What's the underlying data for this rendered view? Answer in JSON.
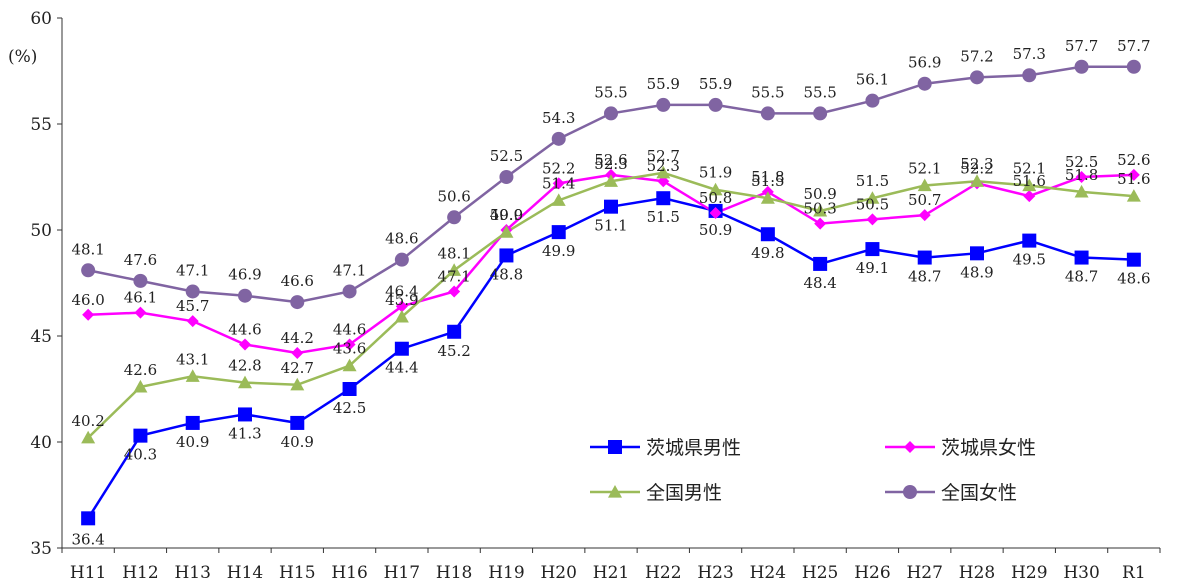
{
  "chart_data": {
    "type": "line",
    "unit_label": "(%)",
    "categories": [
      "H11",
      "H12",
      "H13",
      "H14",
      "H15",
      "H16",
      "H17",
      "H18",
      "H19",
      "H20",
      "H21",
      "H22",
      "H23",
      "H24",
      "H25",
      "H26",
      "H27",
      "H28",
      "H29",
      "H30",
      "R1"
    ],
    "ylim": [
      35,
      60
    ],
    "yticks": [
      35,
      40,
      45,
      50,
      55,
      60
    ],
    "grid": false,
    "legend_position": "bottom-right",
    "series": [
      {
        "name": "茨城県男性",
        "color": "#0000ff",
        "marker": "square",
        "values": [
          36.4,
          40.3,
          40.9,
          41.3,
          40.9,
          42.5,
          44.4,
          45.2,
          48.8,
          49.9,
          51.1,
          51.5,
          50.9,
          49.8,
          48.4,
          49.1,
          48.7,
          48.9,
          49.5,
          48.7,
          48.6
        ],
        "labels": [
          "36.4",
          "40.3",
          "40.9",
          "41.3",
          "40.9",
          "42.5",
          "44.4",
          "45.2",
          "48.8",
          "49.9",
          "51.1",
          "51.5",
          "50.9",
          "49.8",
          "48.4",
          "49.1",
          "48.7",
          "48.9",
          "49.5",
          "48.7",
          "48.6"
        ]
      },
      {
        "name": "茨城県女性",
        "color": "#ff00ff",
        "marker": "diamond",
        "values": [
          46.0,
          46.1,
          45.7,
          44.6,
          44.2,
          44.6,
          46.4,
          47.1,
          50.0,
          52.2,
          52.6,
          52.3,
          50.8,
          51.8,
          50.3,
          50.5,
          50.7,
          52.2,
          51.6,
          52.5,
          52.6
        ],
        "labels": [
          "46.0",
          "46.1",
          "45.7",
          "44.6",
          "44.2",
          "44.6",
          "46.4",
          "47.1",
          "50.0",
          "52.2",
          "52.6",
          "52.3",
          "50.8",
          "51.8",
          "50.3",
          "50.5",
          "50.7",
          "52.2",
          "51.6",
          "52.5",
          "52.6"
        ]
      },
      {
        "name": "全国男性",
        "color": "#9bbb59",
        "marker": "triangle",
        "values": [
          40.2,
          42.6,
          43.1,
          42.8,
          42.7,
          43.6,
          45.9,
          48.1,
          49.9,
          51.4,
          52.3,
          52.7,
          51.9,
          51.5,
          50.9,
          51.5,
          52.1,
          52.3,
          52.1,
          51.8,
          51.6
        ],
        "labels": [
          "40.2",
          "42.6",
          "43.1",
          "42.8",
          "42.7",
          "43.6",
          "45.9",
          "48.1",
          "49.9",
          "51.4",
          "52.3",
          "52.7",
          "51.9",
          "51.5",
          "50.9",
          "51.5",
          "52.1",
          "52.3",
          "52.1",
          "51.8",
          "51.6"
        ]
      },
      {
        "name": "全国女性",
        "color": "#8064a2",
        "marker": "circle",
        "values": [
          48.1,
          47.6,
          47.1,
          46.9,
          46.6,
          47.1,
          48.6,
          50.6,
          52.5,
          54.3,
          55.5,
          55.9,
          55.9,
          55.5,
          55.5,
          56.1,
          56.9,
          57.2,
          57.3,
          57.7,
          57.7
        ],
        "labels": [
          "48.1",
          "47.6",
          "47.1",
          "46.9",
          "46.6",
          "47.1",
          "48.6",
          "50.6",
          "52.5",
          "54.3",
          "55.5",
          "55.9",
          "55.9",
          "55.5",
          "55.5",
          "56.1",
          "56.9",
          "57.2",
          "57.3",
          "57.7",
          "57.7"
        ]
      }
    ]
  }
}
